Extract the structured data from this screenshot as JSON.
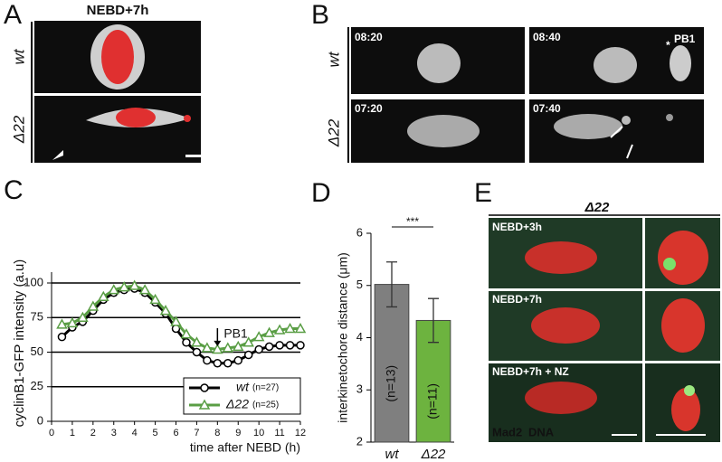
{
  "panel_labels": [
    "A",
    "B",
    "C",
    "D",
    "E"
  ],
  "panel_a": {
    "title": "NEBD+7h",
    "rows": [
      "wt",
      "Δ22"
    ]
  },
  "panel_b": {
    "rows": [
      "wt",
      "Δ22"
    ],
    "timestamps": [
      "08:20",
      "08:40",
      "07:20",
      "07:40"
    ],
    "marker": "*",
    "annotation": "PB1"
  },
  "panel_e": {
    "title": "Δ22",
    "rows": [
      "NEBD+3h",
      "NEBD+7h",
      "NEBD+7h + NZ"
    ],
    "legend": [
      {
        "name": "Mad2",
        "color": "#45c24e"
      },
      {
        "name": "DNA",
        "color": "#e8302a"
      }
    ]
  },
  "chart_data": [
    {
      "type": "line",
      "ylabel": "cyclinB1-GFP intensity (a.u)",
      "xlabel": "time after NEBD (h)",
      "x": [
        0.5,
        1,
        1.5,
        2,
        2.5,
        3,
        3.5,
        4,
        4.5,
        5,
        5.5,
        6,
        6.5,
        7,
        7.5,
        8,
        8.5,
        9,
        9.5,
        10,
        10.5,
        11,
        11.5,
        12
      ],
      "series": [
        {
          "name": "wt",
          "n_label": "(n=27)",
          "color": "#000000",
          "marker": "circle",
          "values": [
            61,
            68,
            72,
            80,
            88,
            93,
            95,
            96,
            93,
            86,
            78,
            67,
            57,
            50,
            44,
            42,
            42,
            44,
            48,
            52,
            54,
            55,
            55,
            55
          ]
        },
        {
          "name": "Δ22",
          "n_label": "(n=25)",
          "color": "#5a9e45",
          "marker": "triangle",
          "values": [
            70,
            71,
            75,
            83,
            90,
            95,
            97,
            98,
            95,
            88,
            80,
            72,
            63,
            57,
            53,
            52,
            53,
            54,
            57,
            61,
            64,
            66,
            67,
            67
          ]
        }
      ],
      "xlim": [
        0,
        12
      ],
      "xticks": [
        0,
        1,
        2,
        3,
        4,
        5,
        6,
        7,
        8,
        9,
        10,
        11,
        12
      ],
      "ylim": [
        0,
        100
      ],
      "yticks": [
        0,
        25,
        50,
        75,
        100
      ],
      "grid": true,
      "legend": "lower right",
      "annotations": [
        {
          "text": "PB1",
          "x": 8,
          "y": 53
        }
      ]
    },
    {
      "type": "bar",
      "ylabel": "interkinetochore distance (μm)",
      "categories": [
        "wt",
        "Δ22"
      ],
      "values": [
        5.02,
        4.33
      ],
      "errors": [
        0.43,
        0.42
      ],
      "colors": [
        "#7f7f7f",
        "#6db33f"
      ],
      "n_labels": [
        "(n=13)",
        "(n=11)"
      ],
      "significance": "***",
      "ylim": [
        2,
        6
      ],
      "yticks": [
        2,
        3,
        4,
        5,
        6
      ]
    }
  ]
}
